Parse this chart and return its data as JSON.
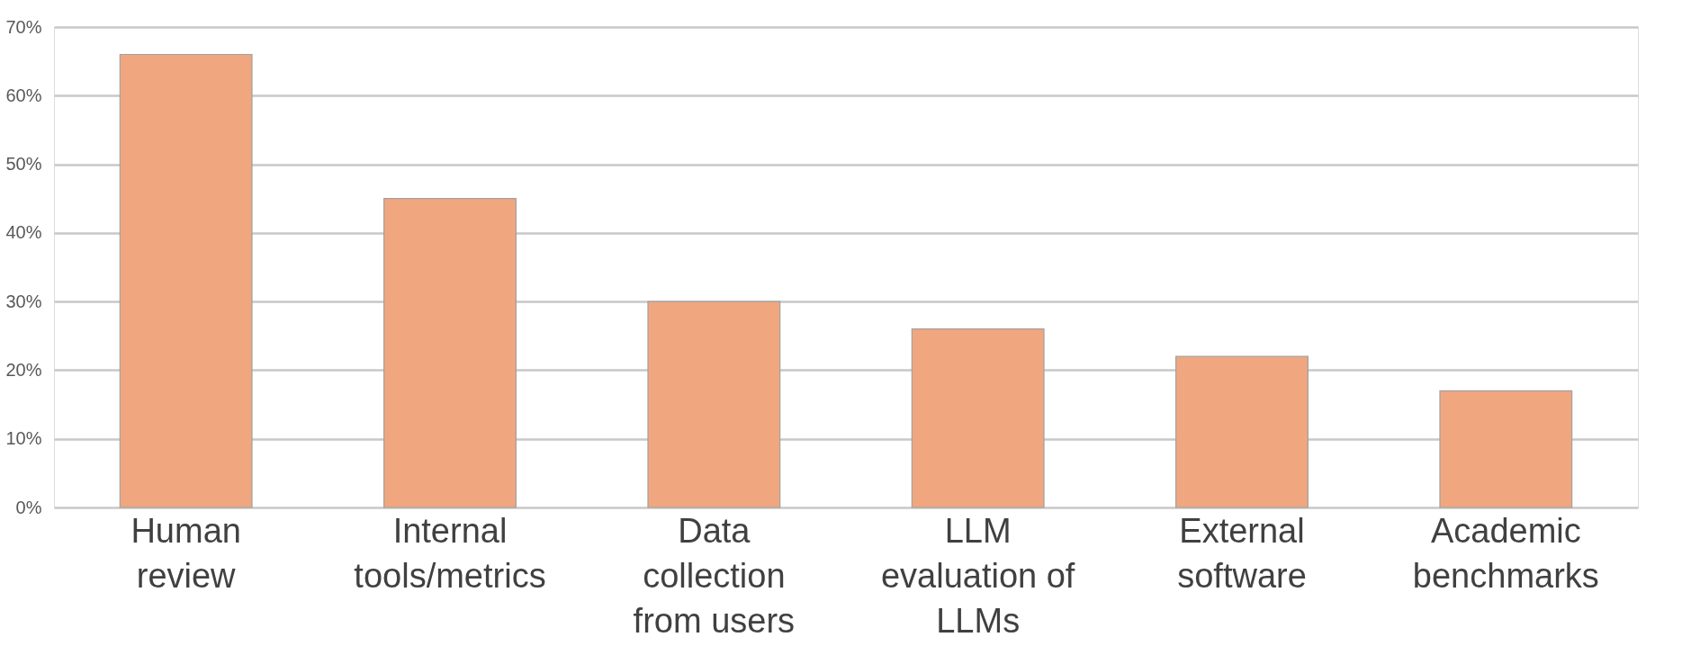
{
  "chart_data": {
    "type": "bar",
    "categories": [
      "Human review",
      "Internal tools/metrics",
      "Data collection from users",
      "LLM evaluation of LLMs",
      "External software",
      "Academic benchmarks"
    ],
    "values": [
      66,
      45,
      30,
      26,
      22,
      17
    ],
    "color": "#f0a77f",
    "ylim": [
      0,
      70
    ],
    "yticks": [
      {
        "value": 0,
        "label": "0%"
      },
      {
        "value": 10,
        "label": "10%"
      },
      {
        "value": 20,
        "label": "20%"
      },
      {
        "value": 30,
        "label": "30%"
      },
      {
        "value": 40,
        "label": "40%"
      },
      {
        "value": 50,
        "label": "50%"
      },
      {
        "value": 60,
        "label": "60%"
      },
      {
        "value": 70,
        "label": "70%"
      }
    ],
    "grid": "y"
  }
}
